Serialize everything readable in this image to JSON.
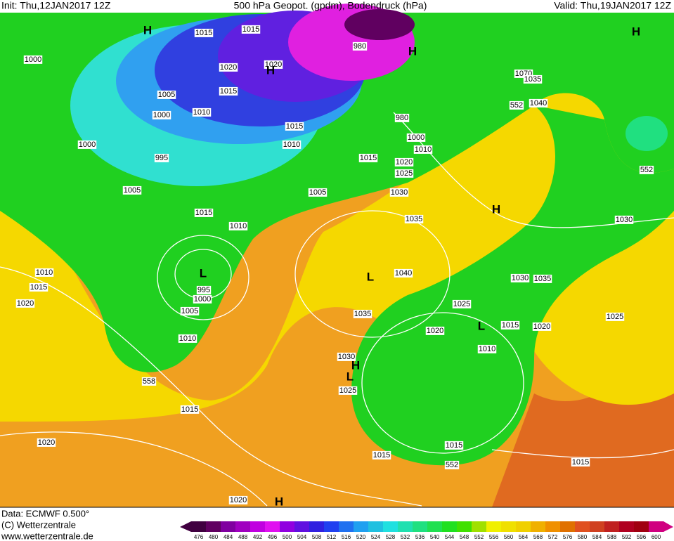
{
  "header": {
    "init": "Init: Thu,12JAN2017 12Z",
    "title": "500 hPa Geopot. (gpdm), Bodendruck (hPa)",
    "valid": "Valid: Thu,19JAN2017 12Z"
  },
  "map": {
    "isobar_labels": [
      "1015",
      "1015",
      "980",
      "1000",
      "1020",
      "1020",
      "1070",
      "1035",
      "1015",
      "1005",
      "1010",
      "1000",
      "552",
      "1040",
      "1015",
      "980",
      "1000",
      "1010",
      "1010",
      "1000",
      "995",
      "1015",
      "1020",
      "552",
      "1025",
      "1005",
      "1005",
      "1030",
      "1015",
      "1035",
      "1030",
      "1010",
      "1040",
      "1035",
      "1030",
      "1010",
      "1015",
      "995",
      "1000",
      "1020",
      "1005",
      "1035",
      "1025",
      "1015",
      "1020",
      "1025",
      "1020",
      "1010",
      "1010",
      "1030",
      "558",
      "1025",
      "1015",
      "1020",
      "1015",
      "1015",
      "552",
      "1015",
      "1020"
    ],
    "pressure_centers": [
      "H",
      "H",
      "H",
      "H",
      "H",
      "L",
      "L",
      "L",
      "H",
      "L",
      "H"
    ]
  },
  "footer": {
    "data": "Data: ECMWF   0.500°",
    "copyright": "(C) Wetterzentrale",
    "url": "www.wetterzentrale.de"
  },
  "colorbar": {
    "labels": [
      476,
      480,
      484,
      488,
      492,
      496,
      500,
      504,
      508,
      512,
      516,
      520,
      524,
      528,
      532,
      536,
      540,
      544,
      548,
      552,
      556,
      560,
      564,
      568,
      572,
      576,
      580,
      584,
      588,
      592,
      596,
      600
    ],
    "colors": [
      "#400040",
      "#600060",
      "#8000a0",
      "#a000c0",
      "#c000e0",
      "#e010f0",
      "#9000e0",
      "#6010e0",
      "#3020e0",
      "#2040f0",
      "#2070f0",
      "#20a0f0",
      "#20c0e0",
      "#20e0e0",
      "#20e0b0",
      "#20e080",
      "#20e050",
      "#20e020",
      "#40e000",
      "#a0e000",
      "#f0f000",
      "#f0e000",
      "#f0d000",
      "#f0b000",
      "#f09000",
      "#e07000",
      "#e05020",
      "#d04020",
      "#c02020",
      "#b00020",
      "#a00010",
      "#d00080"
    ]
  }
}
